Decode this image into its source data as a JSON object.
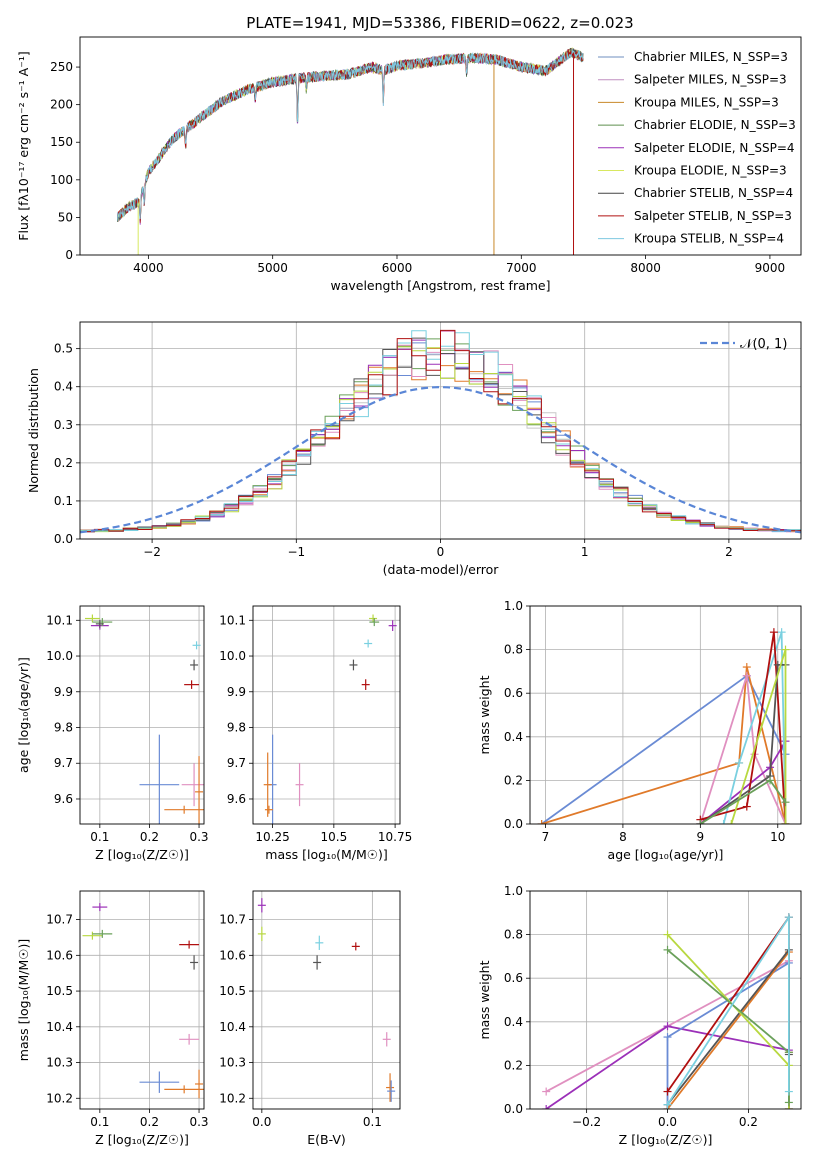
{
  "figure_title": "PLATE=1941, MJD=53386, FIBERID=0622, z=0.023",
  "colors": {
    "models": [
      "#6f8fbf",
      "#c08fc0",
      "#c8882a",
      "#5e8f4e",
      "#9b30b8",
      "#d8e860",
      "#444444",
      "#b01010",
      "#7ec8e0"
    ],
    "dist": [
      "#6a8bd4",
      "#e07a2a",
      "#6aa05a",
      "#c8c8c8",
      "#9b30b8",
      "#e090c0",
      "#555555",
      "#b8d840",
      "#7ad0e0",
      "#b01010"
    ]
  },
  "chart_data": [
    {
      "type": "line",
      "title": "PLATE=1941, MJD=53386, FIBERID=0622, z=0.023",
      "xlabel": "wavelength [Angstrom, rest frame]",
      "ylabel": "Flux [fλ10⁻¹⁷ erg cm⁻² s⁻¹ A⁻¹]",
      "xlim": [
        3450,
        9250
      ],
      "ylim": [
        0,
        290
      ],
      "xticks": [
        4000,
        5000,
        6000,
        7000,
        8000,
        9000
      ],
      "yticks": [
        0,
        50,
        100,
        150,
        200,
        250
      ],
      "legend": "right",
      "series": [
        {
          "name": "Chabrier MILES, N_SSP=3"
        },
        {
          "name": "Salpeter MILES, N_SSP=3"
        },
        {
          "name": "Kroupa MILES, N_SSP=3"
        },
        {
          "name": "Chabrier ELODIE, N_SSP=3"
        },
        {
          "name": "Salpeter ELODIE, N_SSP=4"
        },
        {
          "name": "Kroupa ELODIE, N_SSP=3"
        },
        {
          "name": "Chabrier STELIB, N_SSP=4"
        },
        {
          "name": "Salpeter STELIB, N_SSP=3"
        },
        {
          "name": "Kroupa STELIB, N_SSP=4"
        }
      ],
      "continuum_x": [
        3750,
        3850,
        3920,
        4000,
        4200,
        4400,
        4600,
        4800,
        5000,
        5200,
        5400,
        5600,
        5800,
        5890,
        6000,
        6200,
        6400,
        6600,
        6800,
        7000,
        7200,
        7400,
        7600,
        7800,
        8000,
        8200,
        8400,
        8600,
        8800,
        9000,
        9200
      ],
      "continuum_y": [
        50,
        65,
        70,
        110,
        155,
        180,
        205,
        220,
        230,
        235,
        238,
        240,
        250,
        245,
        252,
        255,
        260,
        262,
        260,
        250,
        245,
        270,
        255,
        245,
        245,
        240,
        235,
        230,
        225,
        220,
        215
      ]
    },
    {
      "type": "histogram",
      "xlabel": "(data-model)/error",
      "ylabel": "Normed distribution",
      "xlim": [
        -2.5,
        2.5
      ],
      "ylim": [
        0,
        0.57
      ],
      "xticks": [
        -2,
        -1,
        0,
        1,
        2
      ],
      "yticks": [
        0.0,
        0.1,
        0.2,
        0.3,
        0.4,
        0.5
      ],
      "legend": "top-right",
      "reference_label": "𝒩(0, 1)",
      "bin_width": 0.1
    },
    {
      "type": "scatter",
      "xlabel": "Z [log₁₀(Z/Z☉)]",
      "ylabel": "age  [log₁₀(age/yr)]",
      "xlim": [
        0.06,
        0.31
      ],
      "ylim": [
        9.53,
        10.14
      ],
      "xticks": [
        0.1,
        0.2,
        0.3
      ],
      "yticks": [
        9.6,
        9.7,
        9.8,
        9.9,
        10.0,
        10.1
      ],
      "points": [
        {
          "x": 0.22,
          "y": 9.64,
          "ex": 0.04,
          "ey": 0.14,
          "c": 0
        },
        {
          "x": 0.27,
          "y": 9.57,
          "ex": 0.04,
          "ey": 0.0,
          "c": 1
        },
        {
          "x": 0.29,
          "y": 9.64,
          "ex": 0.025,
          "ey": 0.06,
          "c": 5
        },
        {
          "x": 0.3,
          "y": 9.62,
          "ex": 0.0,
          "ey": 0.1,
          "c": 1
        },
        {
          "x": 0.285,
          "y": 9.92,
          "ex": 0.015,
          "ey": 0.012,
          "c": 9
        },
        {
          "x": 0.29,
          "y": 9.975,
          "ex": 0.0,
          "ey": 0.015,
          "c": 6
        },
        {
          "x": 0.295,
          "y": 10.03,
          "ex": 0.0,
          "ey": 0.01,
          "c": 8
        },
        {
          "x": 0.1,
          "y": 10.085,
          "ex": 0.018,
          "ey": 0.01,
          "c": 4
        },
        {
          "x": 0.085,
          "y": 10.105,
          "ex": 0.015,
          "ey": 0.0,
          "c": 7
        },
        {
          "x": 0.105,
          "y": 10.095,
          "ex": 0.02,
          "ey": 0.0,
          "c": 2
        },
        {
          "x": 0.1,
          "y": 10.09,
          "ex": 0.0,
          "ey": 0.01,
          "c": 6
        }
      ]
    },
    {
      "type": "scatter",
      "xlabel": "mass [log₁₀(M/M☉)]",
      "ylabel": "",
      "xlim": [
        10.17,
        10.77
      ],
      "ylim": [
        9.53,
        10.14
      ],
      "xticks": [
        10.25,
        10.5,
        10.75
      ],
      "yticks": [
        9.6,
        9.7,
        9.8,
        9.9,
        10.0,
        10.1
      ],
      "points": [
        {
          "x": 10.25,
          "y": 9.64,
          "ex": 0.015,
          "ey": 0.14,
          "c": 0
        },
        {
          "x": 10.23,
          "y": 9.64,
          "ex": 0.0,
          "ey": 0.09,
          "c": 1
        },
        {
          "x": 10.235,
          "y": 9.57,
          "ex": 0.0,
          "ey": 0.0,
          "c": 1
        },
        {
          "x": 10.36,
          "y": 9.64,
          "ex": 0.0,
          "ey": 0.06,
          "c": 5
        },
        {
          "x": 10.63,
          "y": 9.92,
          "ex": 0.0,
          "ey": 0.015,
          "c": 9
        },
        {
          "x": 10.58,
          "y": 9.975,
          "ex": 0.0,
          "ey": 0.015,
          "c": 6
        },
        {
          "x": 10.64,
          "y": 10.035,
          "ex": 0.01,
          "ey": 0.0,
          "c": 8
        },
        {
          "x": 10.74,
          "y": 10.085,
          "ex": 0.0,
          "ey": 0.015,
          "c": 4
        },
        {
          "x": 10.66,
          "y": 10.105,
          "ex": 0.0,
          "ey": 0.0,
          "c": 7
        },
        {
          "x": 10.665,
          "y": 10.095,
          "ex": 0.02,
          "ey": 0.0,
          "c": 2
        }
      ]
    },
    {
      "type": "line",
      "xlabel": "age  [log₁₀(age/yr)]",
      "ylabel": "mass weight",
      "xlim": [
        6.8,
        10.3
      ],
      "ylim": [
        0.0,
        1.0
      ],
      "xticks": [
        7,
        8,
        9,
        10
      ],
      "yticks": [
        0.0,
        0.2,
        0.4,
        0.6,
        0.8,
        1.0
      ],
      "series": [
        {
          "x": [
            6.95,
            9.6,
            10.1
          ],
          "y": [
            0.0,
            0.68,
            0.32
          ],
          "c": 0
        },
        {
          "x": [
            6.95,
            9.5,
            9.6,
            10.1
          ],
          "y": [
            0.0,
            0.28,
            0.72,
            0.0
          ],
          "c": 1
        },
        {
          "x": [
            9.0,
            9.6,
            9.7,
            10.1
          ],
          "y": [
            0.0,
            0.68,
            0.32,
            0.0
          ],
          "c": 5
        },
        {
          "x": [
            9.0,
            9.9,
            10.1
          ],
          "y": [
            0.0,
            0.26,
            0.38
          ],
          "c": 4
        },
        {
          "x": [
            9.3,
            9.5,
            10.05,
            10.1
          ],
          "y": [
            0.0,
            0.28,
            0.88,
            0.0
          ],
          "c": 8
        },
        {
          "x": [
            9.0,
            9.6,
            9.95,
            10.1
          ],
          "y": [
            0.02,
            0.08,
            0.88,
            0.0
          ],
          "c": 9
        },
        {
          "x": [
            9.0,
            9.9,
            10.0,
            10.1
          ],
          "y": [
            0.0,
            0.22,
            0.73,
            0.73
          ],
          "c": 6
        },
        {
          "x": [
            9.4,
            10.1,
            10.1
          ],
          "y": [
            0.0,
            0.8,
            0.0
          ],
          "c": 7
        },
        {
          "x": [
            9.0,
            9.9,
            10.1
          ],
          "y": [
            0.0,
            0.2,
            0.1
          ],
          "c": 2
        }
      ]
    },
    {
      "type": "scatter",
      "xlabel": "Z [log₁₀(Z/Z☉)]",
      "ylabel": "mass [log₁₀(M/M☉)]",
      "xlim": [
        0.06,
        0.31
      ],
      "ylim": [
        10.17,
        10.78
      ],
      "xticks": [
        0.1,
        0.2,
        0.3
      ],
      "yticks": [
        10.2,
        10.3,
        10.4,
        10.5,
        10.6,
        10.7
      ],
      "points": [
        {
          "x": 0.22,
          "y": 10.245,
          "ex": 0.04,
          "ey": 0.03,
          "c": 0
        },
        {
          "x": 0.27,
          "y": 10.225,
          "ex": 0.04,
          "ey": 0.0,
          "c": 1
        },
        {
          "x": 0.3,
          "y": 10.24,
          "ex": 0.0,
          "ey": 0.04,
          "c": 1
        },
        {
          "x": 0.28,
          "y": 10.365,
          "ex": 0.02,
          "ey": 0.015,
          "c": 5
        },
        {
          "x": 0.28,
          "y": 10.63,
          "ex": 0.02,
          "ey": 0.0,
          "c": 9
        },
        {
          "x": 0.29,
          "y": 10.58,
          "ex": 0.0,
          "ey": 0.02,
          "c": 6
        },
        {
          "x": 0.1,
          "y": 10.735,
          "ex": 0.015,
          "ey": 0.01,
          "c": 4
        },
        {
          "x": 0.085,
          "y": 10.655,
          "ex": 0.02,
          "ey": 0.01,
          "c": 7
        },
        {
          "x": 0.105,
          "y": 10.66,
          "ex": 0.02,
          "ey": 0.0,
          "c": 2
        }
      ]
    },
    {
      "type": "scatter",
      "xlabel": "E(B-V)",
      "ylabel": "",
      "xlim": [
        -0.008,
        0.125
      ],
      "ylim": [
        10.17,
        10.78
      ],
      "xticks": [
        0.0,
        0.1
      ],
      "yticks": [
        10.2,
        10.3,
        10.4,
        10.5,
        10.6,
        10.7
      ],
      "points": [
        {
          "x": 0.0,
          "y": 10.74,
          "ex": 0.0,
          "ey": 0.02,
          "c": 4
        },
        {
          "x": 0.0,
          "y": 10.66,
          "ex": 0.0,
          "ey": 0.02,
          "c": 7
        },
        {
          "x": 0.052,
          "y": 10.635,
          "ex": 0.0,
          "ey": 0.02,
          "c": 8
        },
        {
          "x": 0.05,
          "y": 10.58,
          "ex": 0.0,
          "ey": 0.02,
          "c": 6
        },
        {
          "x": 0.085,
          "y": 10.625,
          "ex": 0.0,
          "ey": 0.01,
          "c": 9
        },
        {
          "x": 0.113,
          "y": 10.365,
          "ex": 0.0,
          "ey": 0.02,
          "c": 5
        },
        {
          "x": 0.116,
          "y": 10.23,
          "ex": 0.0,
          "ey": 0.04,
          "c": 1
        },
        {
          "x": 0.117,
          "y": 10.22,
          "ex": 0.0,
          "ey": 0.03,
          "c": 0
        }
      ]
    },
    {
      "type": "line",
      "xlabel": "Z [log₁₀(Z/Z☉)]",
      "ylabel": "mass weight",
      "xlim": [
        -0.34,
        0.33
      ],
      "ylim": [
        0.0,
        1.0
      ],
      "xticks": [
        -0.2,
        0.0,
        0.2
      ],
      "yticks": [
        0.0,
        0.2,
        0.4,
        0.6,
        0.8,
        1.0
      ],
      "series": [
        {
          "x": [
            -0.3,
            0.3
          ],
          "y": [
            0.08,
            0.68
          ],
          "c": 5
        },
        {
          "x": [
            -0.3,
            0.0,
            0.3
          ],
          "y": [
            0.0,
            0.38,
            0.27
          ],
          "c": 4
        },
        {
          "x": [
            0.0,
            0.0,
            0.3,
            0.3
          ],
          "y": [
            0.0,
            0.33,
            0.67,
            0.0
          ],
          "c": 0
        },
        {
          "x": [
            0.0,
            0.3,
            0.3
          ],
          "y": [
            0.0,
            0.72,
            0.26
          ],
          "c": 1
        },
        {
          "x": [
            0.0,
            0.3,
            0.3
          ],
          "y": [
            0.08,
            0.88,
            0.0
          ],
          "c": 9
        },
        {
          "x": [
            0.0,
            0.3,
            0.3
          ],
          "y": [
            0.02,
            0.73,
            0.25
          ],
          "c": 6
        },
        {
          "x": [
            0.0,
            0.3,
            0.3
          ],
          "y": [
            0.8,
            0.2,
            0.0
          ],
          "c": 7
        },
        {
          "x": [
            0.0,
            0.3,
            0.3
          ],
          "y": [
            0.73,
            0.26,
            0.03
          ],
          "c": 2
        },
        {
          "x": [
            0.0,
            0.3,
            0.3
          ],
          "y": [
            0.02,
            0.88,
            0.08
          ],
          "c": 8
        }
      ]
    }
  ]
}
